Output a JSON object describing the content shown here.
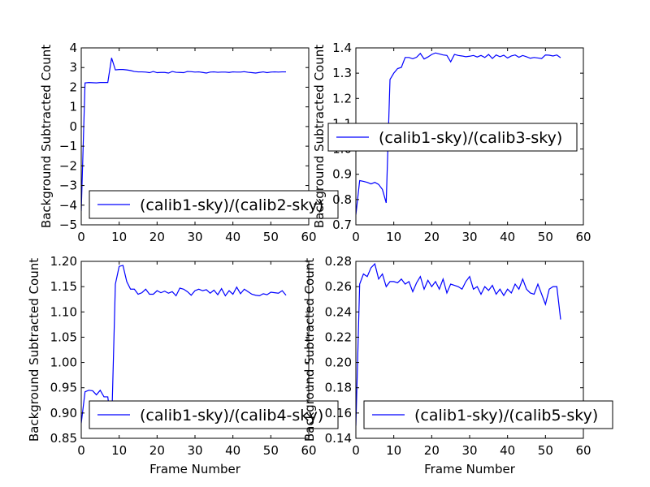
{
  "chart_data": [
    {
      "type": "line",
      "title": "",
      "xlabel": "",
      "ylabel": "Background Subtracted Count",
      "xlim": [
        0,
        60
      ],
      "ylim": [
        -5,
        4
      ],
      "xticks": [
        0,
        10,
        20,
        30,
        40,
        50,
        60
      ],
      "yticks": [
        -5,
        -4,
        -3,
        -2,
        -1,
        0,
        1,
        2,
        3,
        4
      ],
      "ytick_labels": [
        "−5",
        "−4",
        "−3",
        "−2",
        "−1",
        "0",
        "1",
        "2",
        "3",
        "4"
      ],
      "legend_position": "lower-right",
      "series": [
        {
          "name": "(calib1-sky)/(calib2-sky)",
          "color": "#0000ff",
          "x": [
            0,
            1,
            2,
            3,
            4,
            5,
            6,
            7,
            8,
            9,
            10,
            11,
            12,
            13,
            14,
            15,
            16,
            17,
            18,
            19,
            20,
            21,
            22,
            23,
            24,
            25,
            26,
            27,
            28,
            29,
            30,
            31,
            32,
            33,
            34,
            35,
            36,
            37,
            38,
            39,
            40,
            41,
            42,
            43,
            44,
            45,
            46,
            47,
            48,
            49,
            50,
            51,
            52,
            53,
            54
          ],
          "y": [
            -4.3,
            2.22,
            2.24,
            2.23,
            2.22,
            2.24,
            2.24,
            2.24,
            3.49,
            2.88,
            2.9,
            2.9,
            2.88,
            2.85,
            2.8,
            2.78,
            2.78,
            2.77,
            2.74,
            2.8,
            2.74,
            2.75,
            2.75,
            2.72,
            2.8,
            2.76,
            2.75,
            2.74,
            2.8,
            2.79,
            2.77,
            2.78,
            2.75,
            2.72,
            2.77,
            2.78,
            2.76,
            2.77,
            2.77,
            2.75,
            2.78,
            2.77,
            2.77,
            2.79,
            2.76,
            2.74,
            2.72,
            2.75,
            2.78,
            2.74,
            2.77,
            2.78,
            2.77,
            2.78,
            2.78
          ]
        }
      ]
    },
    {
      "type": "line",
      "title": "",
      "xlabel": "",
      "ylabel": "Background Subtracted Count",
      "xlim": [
        0,
        60
      ],
      "ylim": [
        0.7,
        1.4
      ],
      "xticks": [
        0,
        10,
        20,
        30,
        40,
        50,
        60
      ],
      "yticks": [
        0.7,
        0.8,
        0.9,
        1.0,
        1.1,
        1.2,
        1.3,
        1.4
      ],
      "ytick_labels": [
        "0.7",
        "0.8",
        "0.9",
        "1.0",
        "1.1",
        "1.2",
        "1.3",
        "1.4"
      ],
      "legend_position": "center",
      "series": [
        {
          "name": "(calib1-sky)/(calib3-sky)",
          "color": "#0000ff",
          "x": [
            0,
            1,
            2,
            3,
            4,
            5,
            6,
            7,
            8,
            9,
            10,
            11,
            12,
            13,
            14,
            15,
            16,
            17,
            18,
            19,
            20,
            21,
            22,
            23,
            24,
            25,
            26,
            27,
            28,
            29,
            30,
            31,
            32,
            33,
            34,
            35,
            36,
            37,
            38,
            39,
            40,
            41,
            42,
            43,
            44,
            45,
            46,
            47,
            48,
            49,
            50,
            51,
            52,
            53,
            54
          ],
          "y": [
            0.74,
            0.875,
            0.872,
            0.868,
            0.862,
            0.868,
            0.86,
            0.84,
            0.787,
            1.275,
            1.3,
            1.318,
            1.323,
            1.362,
            1.362,
            1.357,
            1.363,
            1.378,
            1.356,
            1.364,
            1.374,
            1.38,
            1.376,
            1.372,
            1.37,
            1.345,
            1.374,
            1.37,
            1.368,
            1.365,
            1.367,
            1.37,
            1.364,
            1.37,
            1.362,
            1.374,
            1.358,
            1.372,
            1.365,
            1.371,
            1.36,
            1.368,
            1.372,
            1.363,
            1.37,
            1.365,
            1.359,
            1.362,
            1.36,
            1.358,
            1.372,
            1.371,
            1.368,
            1.372,
            1.361
          ]
        }
      ]
    },
    {
      "type": "line",
      "title": "",
      "xlabel": "Frame Number",
      "ylabel": "Background Subtracted Count",
      "xlim": [
        0,
        60
      ],
      "ylim": [
        0.85,
        1.2
      ],
      "xticks": [
        0,
        10,
        20,
        30,
        40,
        50,
        60
      ],
      "yticks": [
        0.85,
        0.9,
        0.95,
        1.0,
        1.05,
        1.1,
        1.15,
        1.2
      ],
      "ytick_labels": [
        "0.85",
        "0.90",
        "0.95",
        "1.00",
        "1.05",
        "1.10",
        "1.15",
        "1.20"
      ],
      "legend_position": "lower-right",
      "series": [
        {
          "name": "(calib1-sky)/(calib4-sky)",
          "color": "#0000ff",
          "x": [
            0,
            1,
            2,
            3,
            4,
            5,
            6,
            7,
            8,
            9,
            10,
            11,
            12,
            13,
            14,
            15,
            16,
            17,
            18,
            19,
            20,
            21,
            22,
            23,
            24,
            25,
            26,
            27,
            28,
            29,
            30,
            31,
            32,
            33,
            34,
            35,
            36,
            37,
            38,
            39,
            40,
            41,
            42,
            43,
            44,
            45,
            46,
            47,
            48,
            49,
            50,
            51,
            52,
            53,
            54
          ],
          "y": [
            0.88,
            0.942,
            0.945,
            0.944,
            0.936,
            0.945,
            0.932,
            0.932,
            0.87,
            1.155,
            1.19,
            1.192,
            1.16,
            1.145,
            1.145,
            1.135,
            1.138,
            1.145,
            1.135,
            1.135,
            1.142,
            1.138,
            1.141,
            1.137,
            1.14,
            1.132,
            1.147,
            1.145,
            1.14,
            1.133,
            1.142,
            1.145,
            1.142,
            1.144,
            1.137,
            1.143,
            1.134,
            1.146,
            1.132,
            1.142,
            1.135,
            1.149,
            1.136,
            1.145,
            1.14,
            1.135,
            1.133,
            1.132,
            1.136,
            1.134,
            1.139,
            1.138,
            1.137,
            1.142,
            1.133
          ]
        }
      ]
    },
    {
      "type": "line",
      "title": "",
      "xlabel": "Frame Number",
      "ylabel": "Background Subtracted Count",
      "xlim": [
        0,
        60
      ],
      "ylim": [
        0.14,
        0.28
      ],
      "xticks": [
        0,
        10,
        20,
        30,
        40,
        50,
        60
      ],
      "yticks": [
        0.14,
        0.16,
        0.18,
        0.2,
        0.22,
        0.24,
        0.26,
        0.28
      ],
      "ytick_labels": [
        "0.14",
        "0.16",
        "0.18",
        "0.20",
        "0.22",
        "0.24",
        "0.26",
        "0.28"
      ],
      "legend_position": "lower-right",
      "series": [
        {
          "name": "(calib1-sky)/(calib5-sky)",
          "color": "#0000ff",
          "x": [
            0,
            1,
            2,
            3,
            4,
            5,
            6,
            7,
            8,
            9,
            10,
            11,
            12,
            13,
            14,
            15,
            16,
            17,
            18,
            19,
            20,
            21,
            22,
            23,
            24,
            25,
            26,
            27,
            28,
            29,
            30,
            31,
            32,
            33,
            34,
            35,
            36,
            37,
            38,
            39,
            40,
            41,
            42,
            43,
            44,
            45,
            46,
            47,
            48,
            49,
            50,
            51,
            52,
            53,
            54
          ],
          "y": [
            0.15,
            0.262,
            0.27,
            0.268,
            0.275,
            0.278,
            0.266,
            0.27,
            0.26,
            0.264,
            0.264,
            0.263,
            0.266,
            0.262,
            0.264,
            0.256,
            0.263,
            0.268,
            0.258,
            0.265,
            0.26,
            0.264,
            0.258,
            0.266,
            0.255,
            0.262,
            0.261,
            0.26,
            0.258,
            0.264,
            0.268,
            0.258,
            0.26,
            0.254,
            0.26,
            0.257,
            0.261,
            0.254,
            0.258,
            0.253,
            0.258,
            0.255,
            0.262,
            0.258,
            0.266,
            0.258,
            0.255,
            0.254,
            0.262,
            0.254,
            0.246,
            0.258,
            0.26,
            0.26,
            0.234
          ]
        }
      ]
    }
  ]
}
